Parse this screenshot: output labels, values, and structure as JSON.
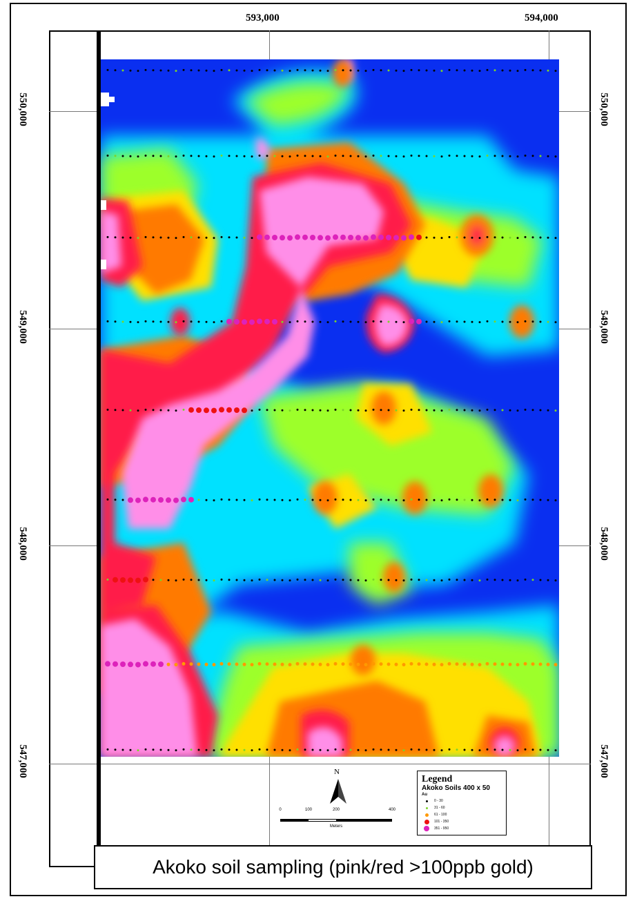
{
  "caption": "Akoko soil sampling (pink/red >100ppb gold)",
  "grid_labels": {
    "eastings": [
      "593,000",
      "594,000"
    ],
    "northings": [
      "550,000",
      "549,000",
      "548,000",
      "547,000"
    ]
  },
  "north_label": "N",
  "scalebar": {
    "ticks": [
      "0",
      "100",
      "200",
      "400"
    ],
    "units": "Meters"
  },
  "legend": {
    "title": "Legend",
    "layer": "Akoko Soils 400 x 50",
    "field": "Au",
    "classes": [
      {
        "label": "0 - 30",
        "color": "#000000"
      },
      {
        "label": "31 - 60",
        "color": "#7cd42a"
      },
      {
        "label": "61 - 100",
        "color": "#ff9900"
      },
      {
        "label": "101 - 350",
        "color": "#ee1111"
      },
      {
        "label": "351 - 950",
        "color": "#dd22bb"
      }
    ]
  },
  "colors": {
    "low": "#0a2ff0",
    "mid_low": "#00e1ff",
    "mid": "#9dff2a",
    "mid_high": "#ffe000",
    "high": "#ff7a00",
    "very_high": "#ff1f4a",
    "max": "#ff8ee8"
  }
}
